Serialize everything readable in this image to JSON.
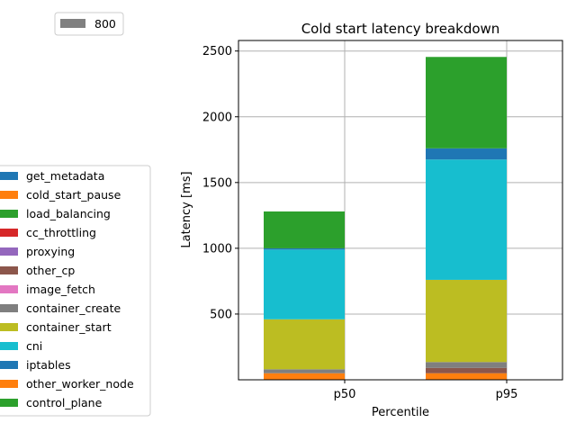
{
  "chart_data": {
    "type": "bar",
    "stacked": true,
    "title": "Cold start latency breakdown",
    "xlabel": "Percentile",
    "ylabel": "Latency [ms]",
    "categories": [
      "p50",
      "p95"
    ],
    "ylim": [
      0,
      2580
    ],
    "yticks": [
      500,
      1000,
      1500,
      2000,
      2500
    ],
    "grid": true,
    "series": [
      {
        "name": "other_worker_node",
        "color": "#ff7f0e",
        "values": [
          50,
          50
        ]
      },
      {
        "name": "other_cp",
        "color": "#8c564b",
        "values": [
          0,
          40
        ]
      },
      {
        "name": "container_create",
        "color": "#7f7f7f",
        "values": [
          30,
          45
        ]
      },
      {
        "name": "container_start",
        "color": "#bcbd22",
        "values": [
          380,
          625
        ]
      },
      {
        "name": "cni",
        "color": "#17becf",
        "values": [
          530,
          915
        ]
      },
      {
        "name": "iptables",
        "color": "#1f77b4",
        "values": [
          10,
          85
        ]
      },
      {
        "name": "control_plane",
        "color": "#2ca02c",
        "values": [
          280,
          695
        ]
      }
    ],
    "legend_main": {
      "placement": "left-center",
      "entries": [
        {
          "name": "get_metadata",
          "color": "#1f77b4"
        },
        {
          "name": "cold_start_pause",
          "color": "#ff7f0e"
        },
        {
          "name": "load_balancing",
          "color": "#2ca02c"
        },
        {
          "name": "cc_throttling",
          "color": "#d62728"
        },
        {
          "name": "proxying",
          "color": "#9467bd"
        },
        {
          "name": "other_cp",
          "color": "#8c564b"
        },
        {
          "name": "image_fetch",
          "color": "#e377c2"
        },
        {
          "name": "container_create",
          "color": "#7f7f7f"
        },
        {
          "name": "container_start",
          "color": "#bcbd22"
        },
        {
          "name": "cni",
          "color": "#17becf"
        },
        {
          "name": "iptables",
          "color": "#1f77b4"
        },
        {
          "name": "other_worker_node",
          "color": "#ff7f0e"
        },
        {
          "name": "control_plane",
          "color": "#2ca02c"
        }
      ]
    },
    "legend_secondary": {
      "placement": "top-left",
      "entries": [
        {
          "name": "800",
          "color": "#808080"
        }
      ]
    }
  }
}
